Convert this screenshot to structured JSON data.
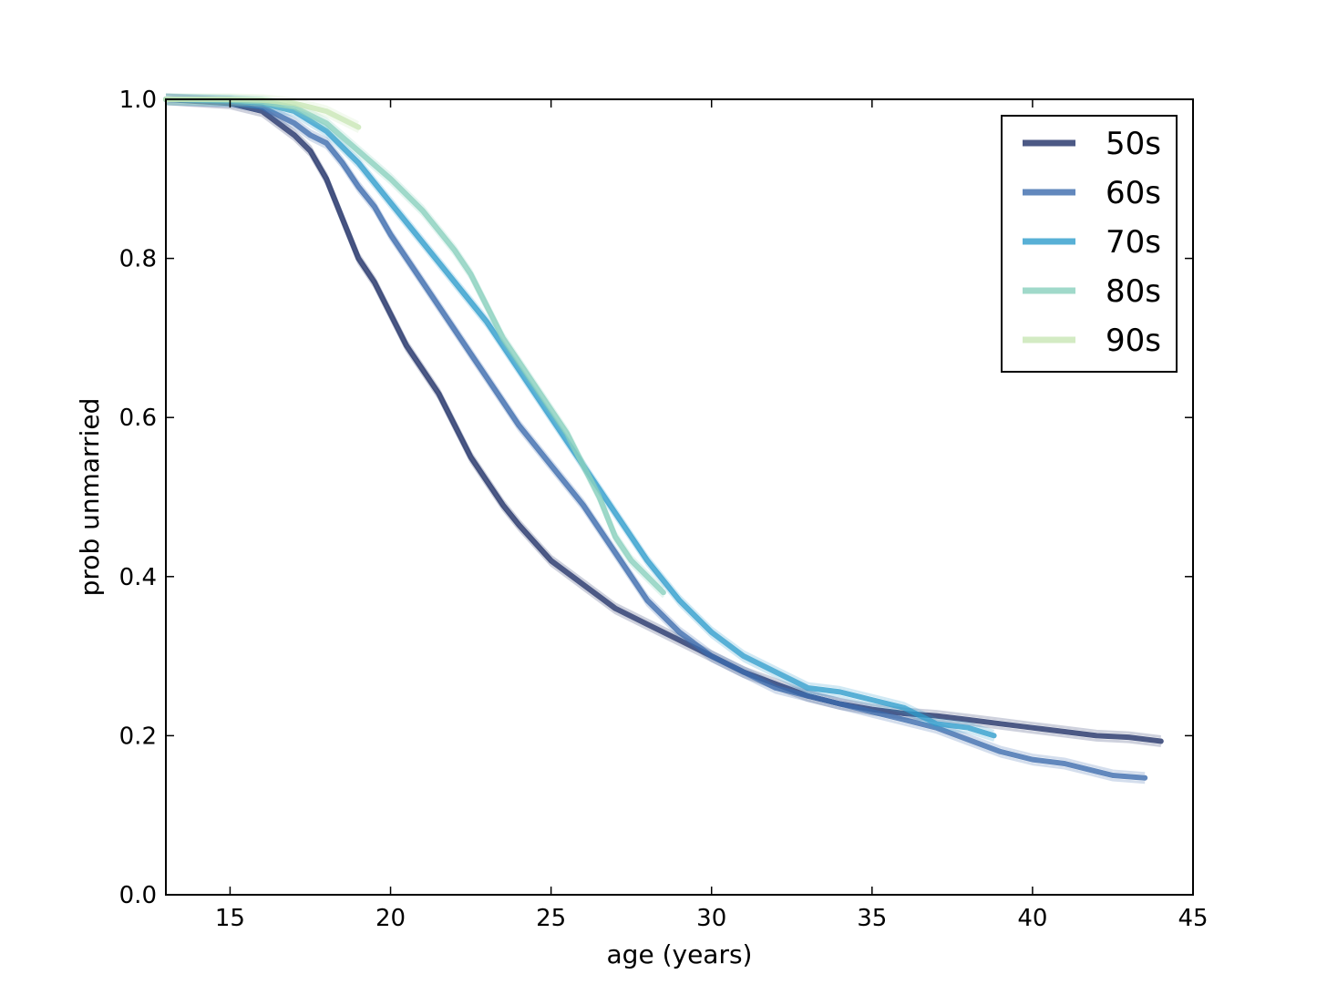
{
  "chart_data": {
    "type": "line",
    "title": "",
    "xlabel": "age (years)",
    "ylabel": "prob unmarried",
    "xlim": [
      13,
      45
    ],
    "ylim": [
      0,
      1
    ],
    "xticks": [
      15,
      20,
      25,
      30,
      35,
      40,
      45
    ],
    "xtick_labels": [
      "15",
      "20",
      "25",
      "30",
      "35",
      "40",
      "45"
    ],
    "yticks": [
      0,
      0.2,
      0.4,
      0.6,
      0.8,
      1.0
    ],
    "ytick_labels": [
      "0.0",
      "0.2",
      "0.4",
      "0.6",
      "0.8",
      "1.0"
    ],
    "grid": false,
    "legend_position": "top-right",
    "series": [
      {
        "name": "50s",
        "color": "#1f2f66",
        "x": [
          13,
          15,
          16,
          17,
          17.5,
          18,
          18.5,
          19,
          19.5,
          20,
          20.5,
          21,
          21.5,
          22,
          22.5,
          23,
          23.5,
          24,
          25,
          26,
          27,
          28,
          29,
          30,
          31,
          32,
          33,
          34,
          35,
          36,
          37,
          38,
          39,
          40,
          41,
          42,
          43,
          44
        ],
        "y": [
          1.0,
          0.995,
          0.985,
          0.955,
          0.935,
          0.9,
          0.85,
          0.8,
          0.77,
          0.73,
          0.69,
          0.66,
          0.63,
          0.59,
          0.55,
          0.52,
          0.49,
          0.465,
          0.42,
          0.39,
          0.36,
          0.34,
          0.32,
          0.3,
          0.28,
          0.265,
          0.25,
          0.24,
          0.233,
          0.228,
          0.225,
          0.22,
          0.215,
          0.21,
          0.205,
          0.2,
          0.198,
          0.193
        ]
      },
      {
        "name": "60s",
        "color": "#3b6aad",
        "x": [
          13,
          15,
          16,
          17,
          17.5,
          18,
          18.5,
          19,
          19.5,
          20,
          20.5,
          21,
          21.5,
          22,
          22.5,
          23,
          23.5,
          24,
          25,
          26,
          27,
          28,
          29,
          30,
          31,
          32,
          33,
          34,
          35,
          36,
          37,
          38,
          39,
          40,
          41,
          42,
          42.5,
          43.5
        ],
        "y": [
          1.0,
          0.997,
          0.99,
          0.97,
          0.955,
          0.945,
          0.92,
          0.89,
          0.865,
          0.83,
          0.8,
          0.77,
          0.74,
          0.71,
          0.68,
          0.65,
          0.62,
          0.59,
          0.54,
          0.49,
          0.43,
          0.37,
          0.33,
          0.3,
          0.28,
          0.26,
          0.25,
          0.24,
          0.23,
          0.22,
          0.21,
          0.195,
          0.18,
          0.17,
          0.165,
          0.155,
          0.15,
          0.147
        ]
      },
      {
        "name": "70s",
        "color": "#2e9ccc",
        "x": [
          13,
          15,
          16,
          17,
          18,
          19,
          20,
          21,
          22,
          23,
          24,
          25,
          26,
          27,
          28,
          29,
          30,
          31,
          32,
          33,
          34,
          35,
          36,
          37,
          38,
          38.8
        ],
        "y": [
          1.0,
          0.998,
          0.995,
          0.985,
          0.96,
          0.92,
          0.87,
          0.82,
          0.77,
          0.72,
          0.66,
          0.6,
          0.54,
          0.48,
          0.42,
          0.37,
          0.33,
          0.3,
          0.28,
          0.26,
          0.255,
          0.245,
          0.235,
          0.215,
          0.21,
          0.2
        ]
      },
      {
        "name": "80s",
        "color": "#88d0bd",
        "x": [
          13,
          15,
          16,
          17,
          18,
          19,
          20,
          21,
          22,
          22.5,
          23,
          23.5,
          24,
          24.5,
          25,
          25.5,
          26,
          26.5,
          27,
          27.5,
          28,
          28.5
        ],
        "y": [
          1.0,
          0.999,
          0.997,
          0.99,
          0.97,
          0.935,
          0.9,
          0.86,
          0.81,
          0.78,
          0.74,
          0.7,
          0.67,
          0.64,
          0.61,
          0.58,
          0.54,
          0.5,
          0.45,
          0.42,
          0.4,
          0.38
        ]
      },
      {
        "name": "90s",
        "color": "#c8e6b4",
        "x": [
          13,
          15,
          16,
          17,
          17.5,
          18,
          18.5,
          19
        ],
        "y": [
          1.0,
          1.0,
          0.999,
          0.995,
          0.99,
          0.985,
          0.975,
          0.965
        ]
      }
    ]
  }
}
